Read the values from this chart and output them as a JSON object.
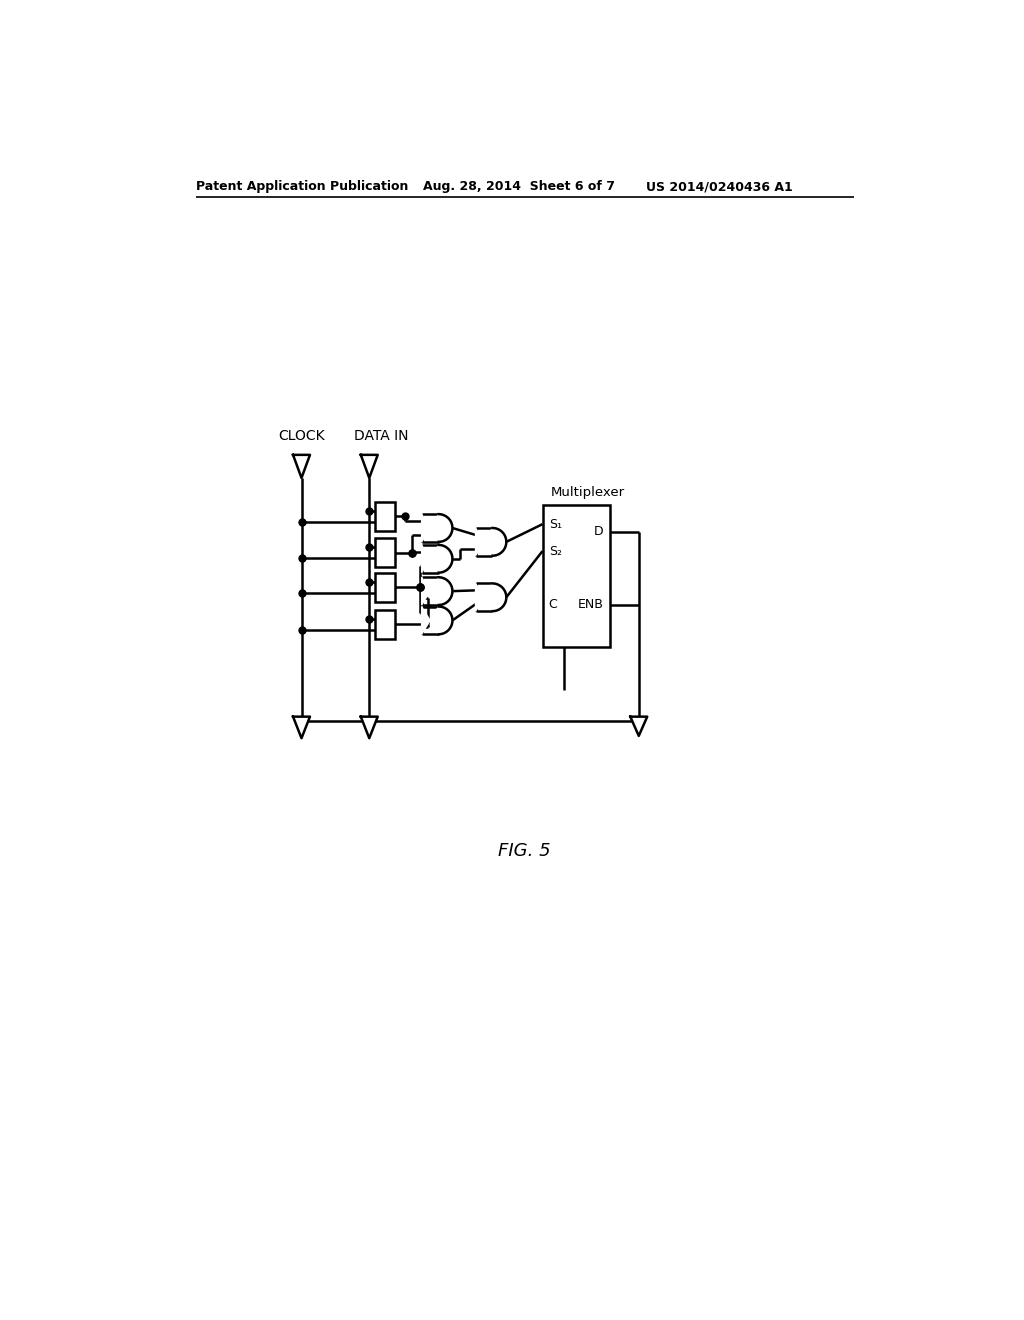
{
  "bg_color": "#ffffff",
  "header_left": "Patent Application Publication",
  "header_mid": "Aug. 28, 2014  Sheet 6 of 7",
  "header_right": "US 2014/0240436 A1",
  "label_clock": "CLOCK",
  "label_datain": "DATA IN",
  "label_mux": "Multiplexer",
  "label_s1": "S₁",
  "label_s2": "S₂",
  "label_c": "C",
  "label_enb": "ENB",
  "label_d": "D",
  "fig_label": "FIG. 5"
}
